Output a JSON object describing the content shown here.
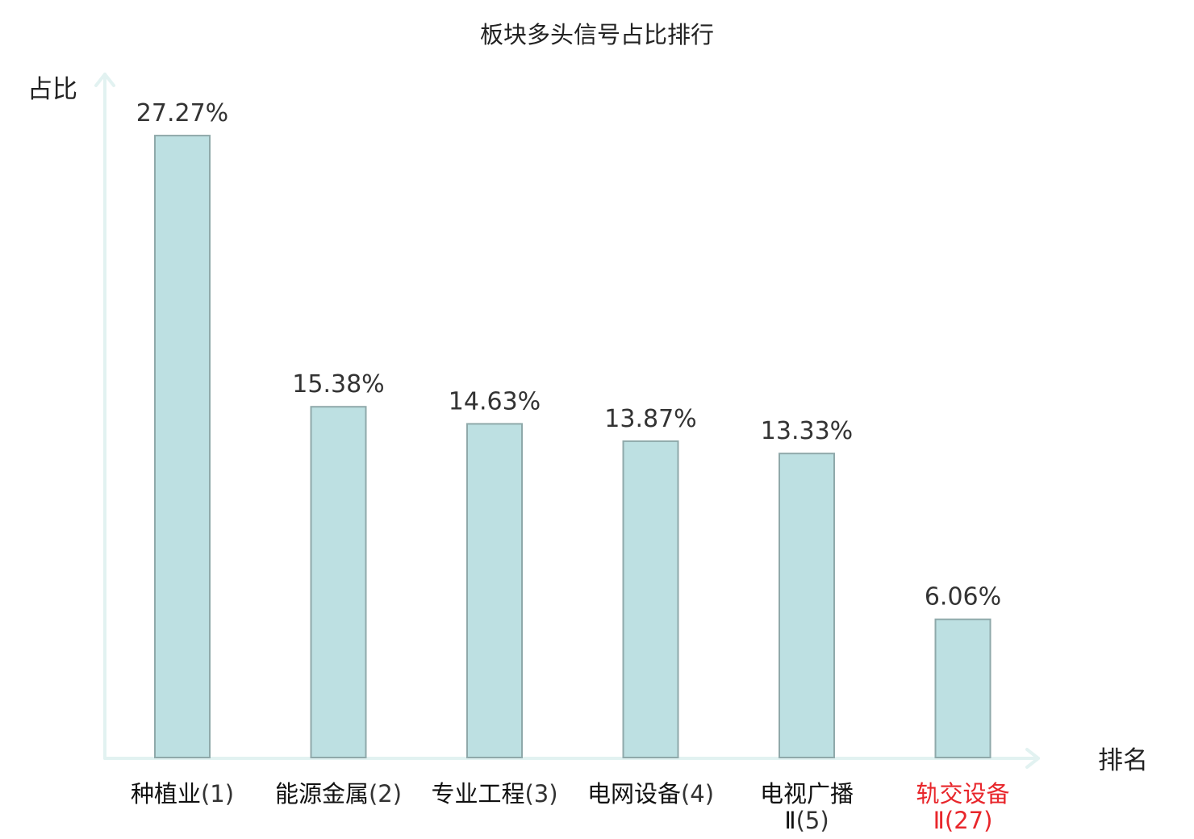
{
  "chart_data": {
    "type": "bar",
    "title": "板块多头信号占比排行",
    "xlabel": "排名",
    "ylabel": "占比",
    "ylim": [
      0,
      30
    ],
    "grid": false,
    "categories": [
      {
        "lines": [
          "种植业"
        ],
        "rank": "(1)"
      },
      {
        "lines": [
          "能源金属"
        ],
        "rank": "(2)"
      },
      {
        "lines": [
          "专业工程"
        ],
        "rank": "(3)"
      },
      {
        "lines": [
          "电网设备"
        ],
        "rank": "(4)"
      },
      {
        "lines": [
          "电视广播",
          "Ⅱ"
        ],
        "rank": "(5)"
      },
      {
        "lines": [
          "轨交设备",
          "Ⅱ"
        ],
        "rank": "(27)"
      }
    ],
    "values": [
      27.27,
      15.38,
      14.63,
      13.87,
      13.33,
      6.06
    ],
    "value_labels": [
      "27.27%",
      "15.38%",
      "14.63%",
      "13.87%",
      "13.33%",
      "6.06%"
    ],
    "highlight_index": 5,
    "colors": {
      "bar_fill": "#bde0e2",
      "bar_stroke": "#8fa9aa",
      "axis": "#e2f2f1",
      "highlight": "#e8262b"
    }
  }
}
